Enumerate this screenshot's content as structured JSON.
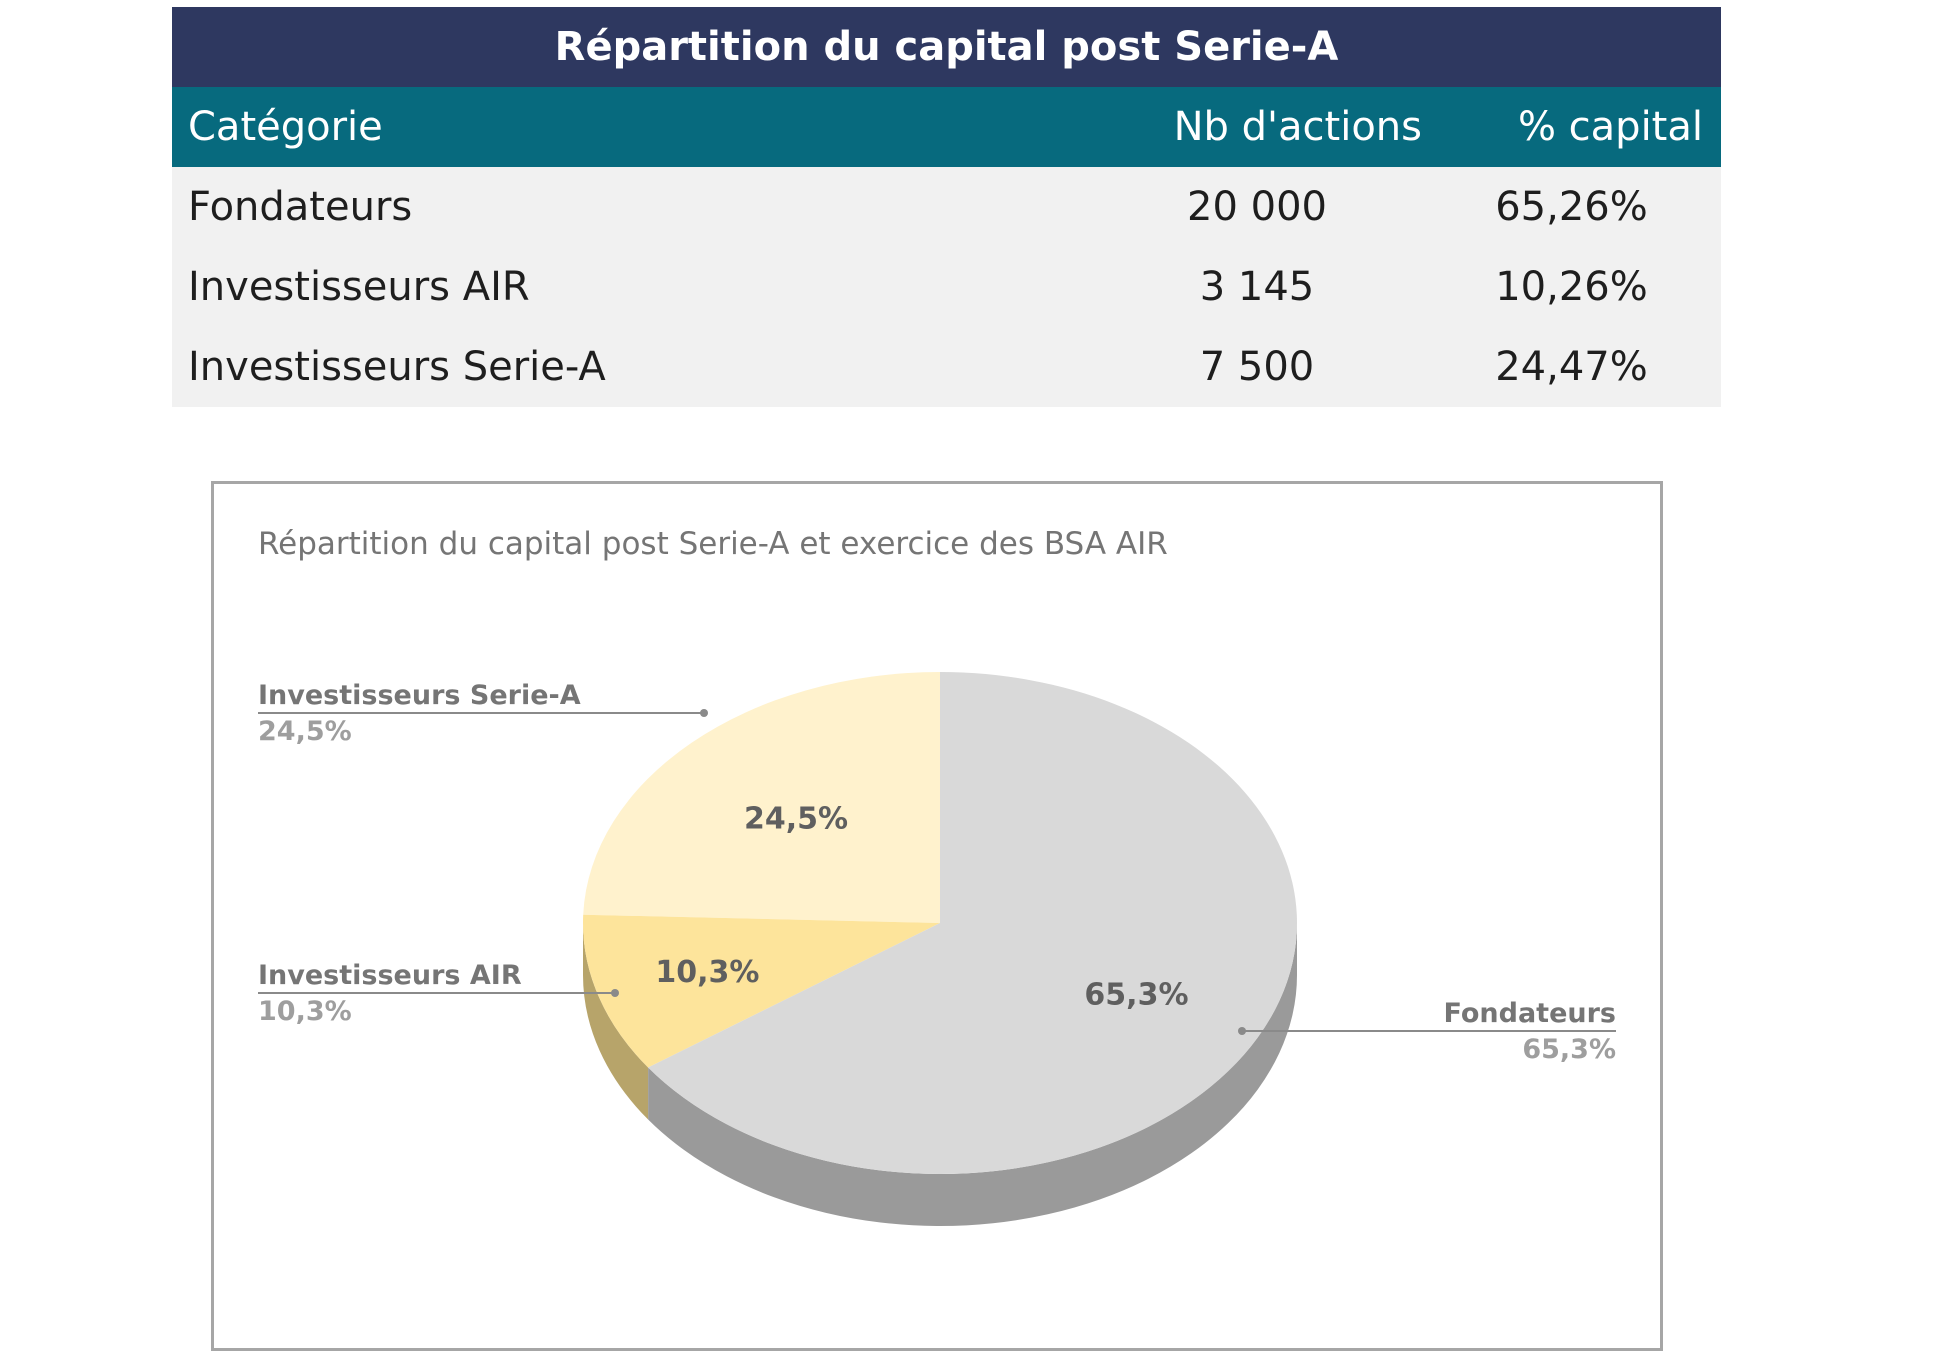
{
  "table": {
    "title": "Répartition du capital post Serie-A",
    "headers": {
      "category": "Catégorie",
      "shares": "Nb d'actions",
      "capital": "% capital"
    },
    "rows": [
      {
        "category": "Fondateurs",
        "shares": "20 000",
        "capital": "65,26%"
      },
      {
        "category": "Investisseurs AIR",
        "shares": "3 145",
        "capital": "10,26%"
      },
      {
        "category": "Investisseurs Serie-A",
        "shares": "7 500",
        "capital": "24,47%"
      }
    ],
    "colors": {
      "title_bg": "#2e3860",
      "header_bg": "#076a7e",
      "body_bg": "#f1f1f1"
    }
  },
  "chart_data": {
    "type": "pie",
    "title": "Répartition du capital post Serie-A et exercice des BSA AIR",
    "style": "3d",
    "slices": [
      {
        "name": "Fondateurs",
        "value": 65.3,
        "label": "65,3%",
        "color": "#d9d9d9",
        "side_color": "#9a9a9a"
      },
      {
        "name": "Investisseurs AIR",
        "value": 10.3,
        "label": "10,3%",
        "color": "#fde49b",
        "side_color": "#b7a46a"
      },
      {
        "name": "Investisseurs Serie-A",
        "value": 24.5,
        "label": "24,5%",
        "color": "#fff2cd",
        "side_color": "#c9bd95"
      }
    ],
    "legend": "callouts"
  }
}
